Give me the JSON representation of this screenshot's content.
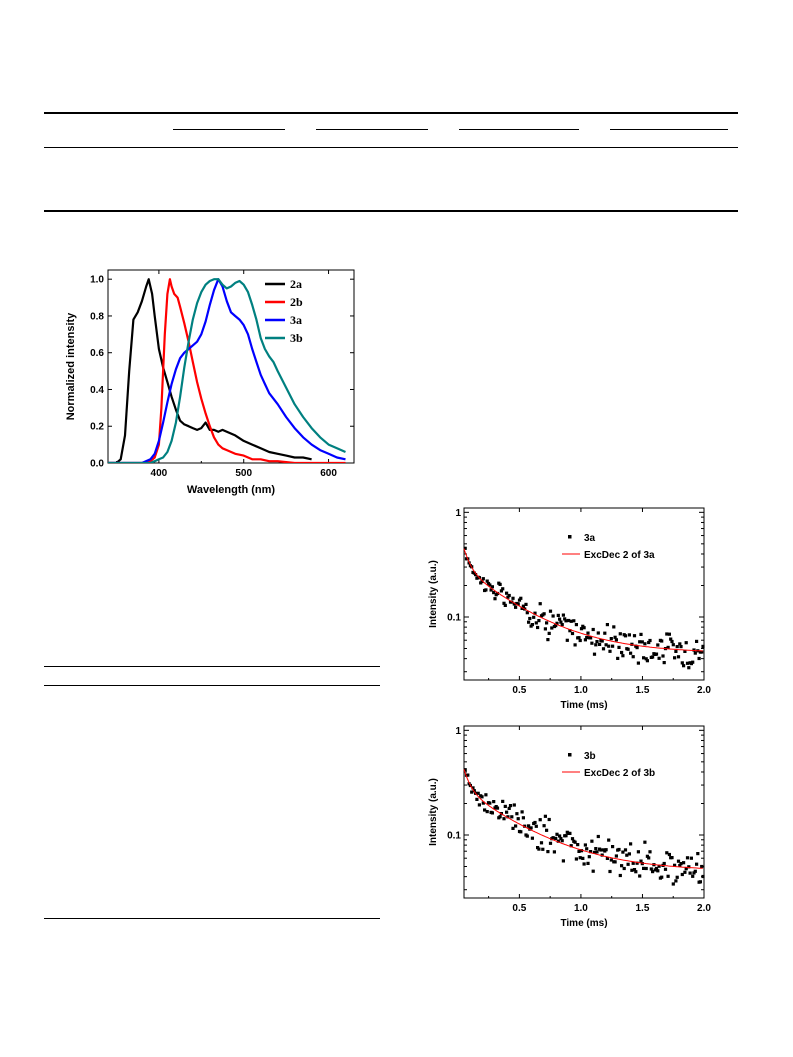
{
  "chart_data": [
    {
      "type": "line",
      "title": "",
      "xlabel": "Wavelength (nm)",
      "ylabel": "Normalized intensity",
      "xlim": [
        340,
        630
      ],
      "ylim": [
        0,
        1.05
      ],
      "xticks": [
        400,
        500,
        600
      ],
      "yticks": [
        0.0,
        0.2,
        0.4,
        0.6,
        0.8,
        1.0
      ],
      "xtick_labels": [
        "400",
        "500",
        "600"
      ],
      "ytick_labels": [
        "0.0",
        "0.2",
        "0.4",
        "0.6",
        "0.8",
        "1.0"
      ],
      "legend_position": "top-right",
      "series": [
        {
          "name": "2a",
          "color": "#000000",
          "x": [
            340,
            350,
            355,
            360,
            365,
            370,
            375,
            380,
            385,
            388,
            392,
            395,
            400,
            405,
            410,
            415,
            420,
            425,
            430,
            435,
            440,
            445,
            450,
            455,
            460,
            465,
            470,
            475,
            480,
            490,
            500,
            510,
            520,
            530,
            540,
            550,
            560,
            570,
            580
          ],
          "y": [
            0.0,
            0.0,
            0.02,
            0.15,
            0.5,
            0.78,
            0.82,
            0.88,
            0.96,
            1.0,
            0.92,
            0.8,
            0.62,
            0.52,
            0.44,
            0.36,
            0.29,
            0.23,
            0.21,
            0.2,
            0.19,
            0.18,
            0.19,
            0.22,
            0.18,
            0.18,
            0.17,
            0.18,
            0.17,
            0.15,
            0.12,
            0.1,
            0.08,
            0.06,
            0.05,
            0.04,
            0.03,
            0.03,
            0.02
          ]
        },
        {
          "name": "2b",
          "color": "#ff0000",
          "x": [
            340,
            380,
            390,
            395,
            400,
            403,
            407,
            410,
            413,
            415,
            418,
            422,
            425,
            430,
            435,
            440,
            445,
            450,
            455,
            460,
            465,
            470,
            475,
            480,
            490,
            500,
            510,
            520,
            530,
            540,
            560,
            580,
            600,
            620
          ],
          "y": [
            0.0,
            0.0,
            0.01,
            0.03,
            0.1,
            0.3,
            0.7,
            0.92,
            1.0,
            0.96,
            0.92,
            0.9,
            0.85,
            0.76,
            0.66,
            0.55,
            0.44,
            0.35,
            0.27,
            0.2,
            0.14,
            0.1,
            0.08,
            0.07,
            0.05,
            0.04,
            0.02,
            0.02,
            0.01,
            0.01,
            0.0,
            0.0,
            0.0,
            0.0
          ]
        },
        {
          "name": "3a",
          "color": "#0000ff",
          "x": [
            340,
            380,
            390,
            395,
            400,
            405,
            410,
            415,
            420,
            425,
            430,
            435,
            440,
            445,
            450,
            455,
            460,
            465,
            470,
            475,
            480,
            485,
            490,
            495,
            500,
            505,
            510,
            515,
            520,
            525,
            530,
            540,
            550,
            560,
            570,
            580,
            590,
            600,
            610,
            620
          ],
          "y": [
            0.0,
            0.0,
            0.02,
            0.05,
            0.12,
            0.22,
            0.33,
            0.43,
            0.51,
            0.57,
            0.6,
            0.62,
            0.64,
            0.66,
            0.7,
            0.77,
            0.86,
            0.94,
            1.0,
            0.96,
            0.88,
            0.82,
            0.8,
            0.78,
            0.75,
            0.7,
            0.62,
            0.55,
            0.48,
            0.43,
            0.38,
            0.32,
            0.25,
            0.19,
            0.14,
            0.1,
            0.07,
            0.05,
            0.03,
            0.02
          ]
        },
        {
          "name": "3b",
          "color": "#008080",
          "x": [
            340,
            390,
            395,
            400,
            405,
            410,
            415,
            420,
            425,
            430,
            435,
            440,
            445,
            450,
            455,
            460,
            465,
            470,
            475,
            480,
            485,
            490,
            495,
            500,
            505,
            510,
            515,
            520,
            525,
            530,
            535,
            540,
            550,
            560,
            570,
            580,
            590,
            600,
            610,
            620
          ],
          "y": [
            0.0,
            0.0,
            0.01,
            0.02,
            0.03,
            0.06,
            0.12,
            0.22,
            0.36,
            0.52,
            0.66,
            0.78,
            0.87,
            0.93,
            0.97,
            0.99,
            1.0,
            1.0,
            0.97,
            0.95,
            0.96,
            0.98,
            0.99,
            0.97,
            0.93,
            0.86,
            0.78,
            0.68,
            0.62,
            0.58,
            0.55,
            0.5,
            0.41,
            0.32,
            0.25,
            0.19,
            0.14,
            0.1,
            0.08,
            0.06
          ]
        }
      ]
    },
    {
      "type": "scatter",
      "title": "",
      "xlabel": "Time (ms)",
      "ylabel": "Intensity (a.u.)",
      "xlim": [
        0.05,
        2.0
      ],
      "ylim": [
        0.025,
        1.1
      ],
      "yscale": "log",
      "xticks": [
        0.5,
        1.0,
        1.5,
        2.0
      ],
      "xtick_labels": [
        "0.5",
        "1.0",
        "1.5",
        "2.0"
      ],
      "yticks": [
        0.1,
        1
      ],
      "ytick_labels": [
        "0.1",
        "1"
      ],
      "legend_position": "top-right",
      "series": [
        {
          "name": "3a",
          "kind": "points",
          "color": "#000000",
          "decay": {
            "a1": 0.45,
            "t1": 0.05,
            "a2": 0.27,
            "t2": 0.42,
            "y0": 0.045
          },
          "noise": 0.2
        },
        {
          "name": "ExcDec 2 of 3a",
          "kind": "fit",
          "color": "#ff0000",
          "decay": {
            "a1": 0.45,
            "t1": 0.05,
            "a2": 0.27,
            "t2": 0.42,
            "y0": 0.045
          }
        }
      ]
    },
    {
      "type": "scatter",
      "title": "",
      "xlabel": "Time (ms)",
      "ylabel": "Intensity (a.u.)",
      "xlim": [
        0.05,
        2.0
      ],
      "ylim": [
        0.025,
        1.1
      ],
      "yscale": "log",
      "xticks": [
        0.5,
        1.0,
        1.5,
        2.0
      ],
      "xtick_labels": [
        "0.5",
        "1.0",
        "1.5",
        "2.0"
      ],
      "yticks": [
        0.1,
        1
      ],
      "ytick_labels": [
        "0.1",
        "1"
      ],
      "legend_position": "top-right",
      "series": [
        {
          "name": "3b",
          "kind": "points",
          "color": "#000000",
          "decay": {
            "a1": 0.42,
            "t1": 0.05,
            "a2": 0.25,
            "t2": 0.45,
            "y0": 0.045
          },
          "noise": 0.22
        },
        {
          "name": "ExcDec 2 of 3b",
          "kind": "fit",
          "color": "#ff0000",
          "decay": {
            "a1": 0.42,
            "t1": 0.05,
            "a2": 0.25,
            "t2": 0.45,
            "y0": 0.045
          }
        }
      ]
    }
  ]
}
